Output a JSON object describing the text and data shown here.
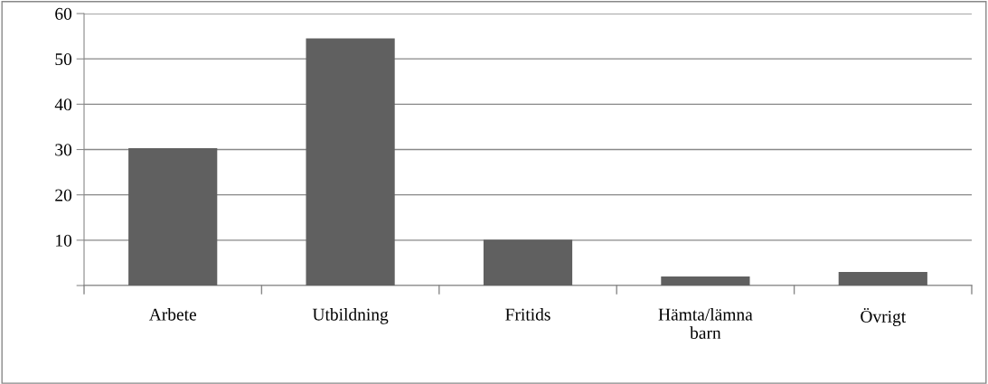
{
  "chart_data": {
    "type": "bar",
    "categories": [
      "Arbete",
      "Utbildning",
      "Fritids",
      "Hämta/lämna barn",
      "Övrigt"
    ],
    "values": [
      30.3,
      54.5,
      10.1,
      2,
      3
    ],
    "color": "#606060",
    "ylim": [
      0,
      60
    ],
    "yticks": [
      {
        "value": 0,
        "label": null
      },
      10,
      20,
      30,
      40,
      50,
      60
    ],
    "grid": "y",
    "legend": false
  }
}
